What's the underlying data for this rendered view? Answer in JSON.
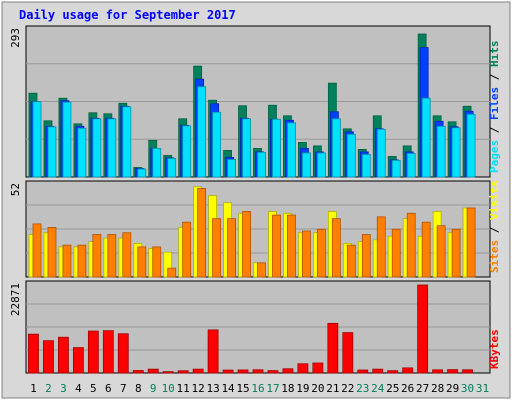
{
  "title": "Daily usage for September 2017",
  "colors": {
    "hits": "#00805C",
    "files": "#0040FF",
    "pages": "#00E0FF",
    "visits": "#FFFF00",
    "sites": "#FF8000",
    "kbytes": "#FF0000",
    "title": "#0000FF",
    "weekday_label": "#000000",
    "weekend_label": "#00805C",
    "panel_bg": "#C0C0C0",
    "frame_bg": "#D8D8D8"
  },
  "chart_data": [
    {
      "type": "bar",
      "panel": "hits-files-pages",
      "ymax_label": "293",
      "legend": [
        "Pages",
        "Files",
        "Hits"
      ],
      "legend_separator": " / ",
      "ylim": [
        0,
        293
      ],
      "categories": [
        "1",
        "2",
        "3",
        "4",
        "5",
        "6",
        "7",
        "8",
        "9",
        "10",
        "11",
        "12",
        "13",
        "14",
        "15",
        "16",
        "17",
        "18",
        "19",
        "20",
        "21",
        "22",
        "23",
        "24",
        "25",
        "26",
        "27",
        "28",
        "29",
        "30",
        "31"
      ],
      "series": [
        {
          "name": "Hits",
          "values": [
            167,
            112,
            157,
            106,
            128,
            126,
            147,
            19,
            73,
            43,
            116,
            221,
            153,
            53,
            142,
            57,
            143,
            122,
            69,
            62,
            187,
            96,
            55,
            122,
            41,
            62,
            285,
            122,
            110,
            141,
            0
          ]
        },
        {
          "name": "Files",
          "values": [
            150,
            101,
            152,
            101,
            117,
            117,
            141,
            17,
            57,
            38,
            103,
            195,
            146,
            39,
            117,
            50,
            115,
            113,
            57,
            50,
            130,
            90,
            50,
            96,
            34,
            50,
            258,
            111,
            100,
            131,
            0
          ]
        },
        {
          "name": "Pages",
          "values": [
            150,
            100,
            149,
            97,
            116,
            116,
            140,
            16,
            57,
            37,
            102,
            180,
            129,
            35,
            116,
            49,
            115,
            108,
            48,
            48,
            116,
            85,
            45,
            95,
            33,
            47,
            157,
            101,
            98,
            125,
            0
          ]
        }
      ]
    },
    {
      "type": "bar",
      "panel": "visits-sites",
      "ymax_label": "52",
      "legend": [
        "Sites",
        "Visits"
      ],
      "legend_separator": " / ",
      "ylim": [
        0,
        52
      ],
      "categories": [
        "1",
        "2",
        "3",
        "4",
        "5",
        "6",
        "7",
        "8",
        "9",
        "10",
        "11",
        "12",
        "13",
        "14",
        "15",
        "16",
        "17",
        "18",
        "19",
        "20",
        "21",
        "22",
        "23",
        "24",
        "25",
        "26",
        "27",
        "28",
        "29",
        "30",
        "31"
      ],
      "series": [
        {
          "name": "Visits",
          "values": [
            24,
            25,
            17,
            17,
            20,
            22,
            22,
            19,
            16,
            14,
            28,
            51,
            46,
            42,
            36,
            8,
            37,
            36,
            25,
            25,
            37,
            19,
            20,
            21,
            23,
            33,
            23,
            37,
            25,
            39,
            0
          ]
        },
        {
          "name": "Sites",
          "values": [
            30,
            28,
            18,
            18,
            24,
            24,
            25,
            17,
            17,
            5,
            31,
            50,
            33,
            33,
            37,
            8,
            35,
            35,
            26,
            27,
            33,
            18,
            24,
            34,
            27,
            36,
            31,
            29,
            27,
            39,
            0
          ]
        }
      ]
    },
    {
      "type": "bar",
      "panel": "kbytes",
      "ymax_label": "22871",
      "legend": [
        "KBytes"
      ],
      "ylim": [
        0,
        22871
      ],
      "categories": [
        "1",
        "2",
        "3",
        "4",
        "5",
        "6",
        "7",
        "8",
        "9",
        "10",
        "11",
        "12",
        "13",
        "14",
        "15",
        "16",
        "17",
        "18",
        "19",
        "20",
        "21",
        "22",
        "23",
        "24",
        "25",
        "26",
        "27",
        "28",
        "29",
        "30",
        "31"
      ],
      "series": [
        {
          "name": "KBytes",
          "values": [
            10100,
            8400,
            9300,
            6600,
            10900,
            11000,
            10200,
            640,
            1000,
            350,
            580,
            1000,
            11200,
            760,
            800,
            840,
            620,
            1100,
            2400,
            2600,
            12900,
            10500,
            770,
            1000,
            600,
            1330,
            22871,
            830,
            870,
            840,
            0
          ]
        }
      ]
    }
  ],
  "x_axis": {
    "labels": [
      "1",
      "2",
      "3",
      "4",
      "5",
      "6",
      "7",
      "8",
      "9",
      "10",
      "11",
      "12",
      "13",
      "14",
      "15",
      "16",
      "17",
      "18",
      "19",
      "20",
      "21",
      "22",
      "23",
      "24",
      "25",
      "26",
      "27",
      "28",
      "29",
      "30",
      "31"
    ],
    "weekend_days": [
      2,
      3,
      9,
      10,
      16,
      17,
      23,
      24,
      30,
      31
    ]
  }
}
